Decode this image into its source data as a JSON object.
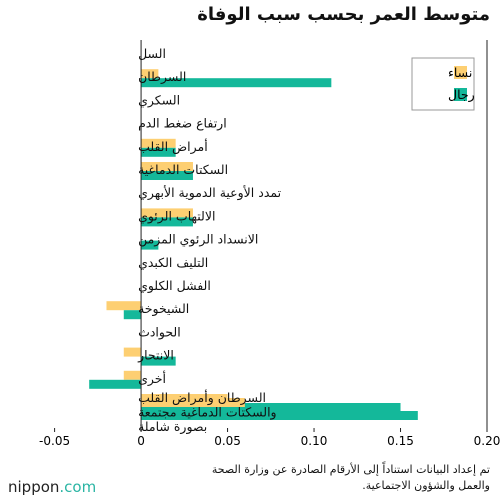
{
  "header": {
    "title": "متوسط العمر بحسب سبب الوفاة"
  },
  "chart_data": {
    "type": "bar",
    "orientation": "horizontal",
    "title": "متوسط العمر بحسب سبب الوفاة",
    "xlabel": "",
    "ylabel": "",
    "xlim": [
      -0.07,
      0.2
    ],
    "x_ticks": [
      -0.05,
      0,
      0.05,
      0.1,
      0.15,
      0.2
    ],
    "x_tick_labels": [
      "-0.05",
      "0",
      "0.05",
      "0.10",
      "0.15",
      "0.20"
    ],
    "grid": false,
    "legend_position": "top-right",
    "categories": [
      "السل",
      "السرطان",
      "السكري",
      "ارتفاع ضغط الدم",
      "أمراض القلب",
      "السكتات الدماغية",
      "تمدد الأوعية الدموية الأبهري",
      "الالتهاب الرئوي",
      "الانسداد الرئوي المزمن",
      "التليف الكبدي",
      "الفشل الكلوي",
      "الشيخوخة",
      "الحوادث",
      "الانتحار",
      "أخرى",
      "السرطان وأمراض القلب\nوالسكتات الدماغية مجتمعة\nبصورة شاملة"
    ],
    "series": [
      {
        "name": "نساء",
        "color": "#fdcf72",
        "values": [
          0,
          0.01,
          0,
          0,
          0.02,
          0.03,
          0,
          0.03,
          0,
          0,
          0,
          -0.02,
          0,
          -0.01,
          -0.01,
          0.05
        ]
      },
      {
        "name": "رجال",
        "color": "#14b89a",
        "values": [
          0,
          0.11,
          0,
          0,
          0.02,
          0.03,
          0,
          0.03,
          0.01,
          0,
          0,
          -0.01,
          0,
          0.02,
          -0.03,
          0.15
        ]
      }
    ],
    "combined_category_values": {
      "نساء": 0.06,
      "رجال": 0.16
    }
  },
  "footer": {
    "source_note": "تم إعداد البيانات استناداً إلى الأرقام الصادرة عن وزارة الصحة والعمل والشؤون الاجتماعية.",
    "brand_name": "nippon",
    "brand_domain": ".com"
  }
}
